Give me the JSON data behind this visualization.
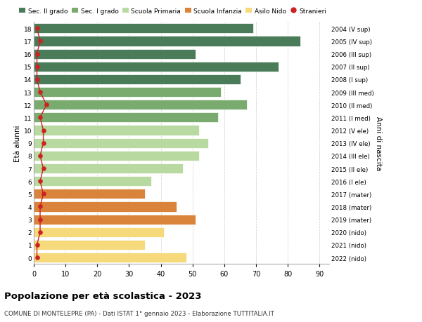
{
  "ages": [
    18,
    17,
    16,
    15,
    14,
    13,
    12,
    11,
    10,
    9,
    8,
    7,
    6,
    5,
    4,
    3,
    2,
    1,
    0
  ],
  "values": [
    69,
    84,
    51,
    77,
    65,
    59,
    67,
    58,
    52,
    55,
    52,
    47,
    37,
    35,
    45,
    51,
    41,
    35,
    48
  ],
  "stranieri": [
    1,
    2,
    1,
    1,
    1,
    2,
    4,
    2,
    3,
    3,
    2,
    3,
    2,
    3,
    2,
    2,
    2,
    1,
    1
  ],
  "right_labels": [
    "2004 (V sup)",
    "2005 (IV sup)",
    "2006 (III sup)",
    "2007 (II sup)",
    "2008 (I sup)",
    "2009 (III med)",
    "2010 (II med)",
    "2011 (I med)",
    "2012 (V ele)",
    "2013 (IV ele)",
    "2014 (III ele)",
    "2015 (II ele)",
    "2016 (I ele)",
    "2017 (mater)",
    "2018 (mater)",
    "2019 (mater)",
    "2020 (nido)",
    "2021 (nido)",
    "2022 (nido)"
  ],
  "bar_colors": [
    "#4a7c59",
    "#4a7c59",
    "#4a7c59",
    "#4a7c59",
    "#4a7c59",
    "#7aab6e",
    "#7aab6e",
    "#7aab6e",
    "#b8d9a0",
    "#b8d9a0",
    "#b8d9a0",
    "#b8d9a0",
    "#b8d9a0",
    "#d9843a",
    "#d9843a",
    "#d9843a",
    "#f5d97a",
    "#f5d97a",
    "#f5d97a"
  ],
  "legend_labels": [
    "Sec. II grado",
    "Sec. I grado",
    "Scuola Primaria",
    "Scuola Infanzia",
    "Asilo Nido",
    "Stranieri"
  ],
  "legend_colors": [
    "#4a7c59",
    "#7aab6e",
    "#b8d9a0",
    "#d9843a",
    "#f5d97a",
    "#cc2222"
  ],
  "stranieri_color": "#cc2222",
  "xlabel_vals": [
    0,
    10,
    20,
    30,
    40,
    50,
    60,
    70,
    80,
    90
  ],
  "ylabel": "Età alunni",
  "ylabel_right": "Anni di nascita",
  "title": "Popolazione per età scolastica - 2023",
  "subtitle": "COMUNE DI MONTELEPRE (PA) - Dati ISTAT 1° gennaio 2023 - Elaborazione TUTTITALIA.IT",
  "xlim": [
    0,
    93
  ],
  "grid_color": "#cccccc",
  "bg_color": "#ffffff"
}
